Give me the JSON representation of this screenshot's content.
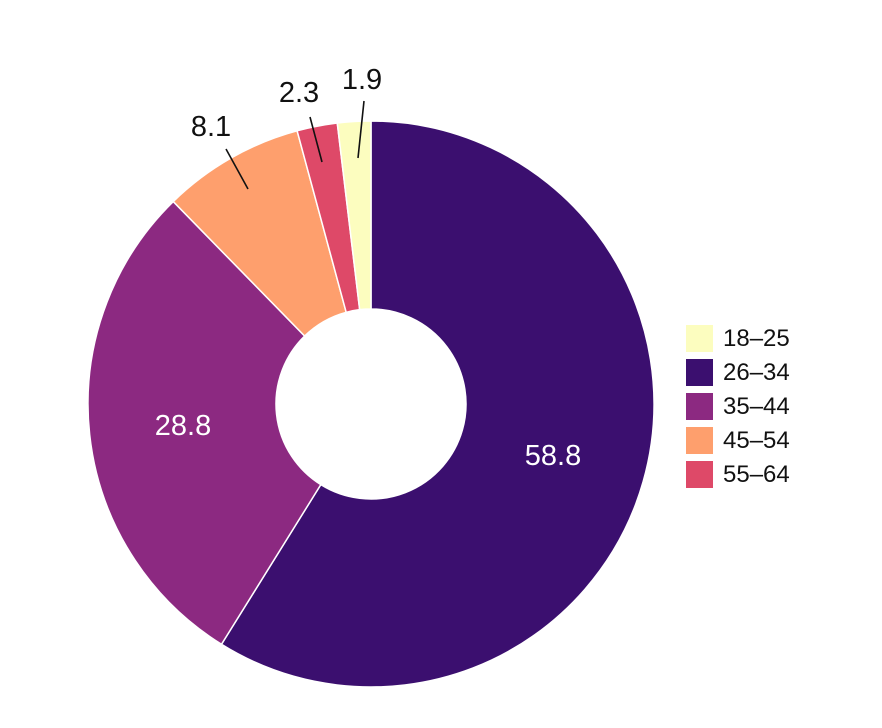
{
  "chart_data": {
    "type": "pie",
    "style": "donut",
    "categories": [
      "26–34",
      "35–44",
      "45–54",
      "55–64",
      "18–25"
    ],
    "values": [
      58.8,
      28.8,
      8.1,
      2.3,
      1.9
    ],
    "colors": [
      "#3b0f6f",
      "#8c2981",
      "#fe9f6d",
      "#de4968",
      "#fcfdbf"
    ],
    "data_labels": [
      "58.8",
      "28.8",
      "8.1",
      "2.3",
      "1.9"
    ],
    "label_placement": [
      "inside",
      "inside",
      "outside",
      "outside",
      "outside"
    ],
    "label_colors": [
      "#ffffff",
      "#ffffff",
      "#111111",
      "#111111",
      "#111111"
    ],
    "legend": {
      "position": "right",
      "entries": [
        {
          "label": "18–25",
          "color": "#fcfdbf"
        },
        {
          "label": "26–34",
          "color": "#3b0f6f"
        },
        {
          "label": "35–44",
          "color": "#8c2981"
        },
        {
          "label": "45–54",
          "color": "#fe9f6d"
        },
        {
          "label": "55–64",
          "color": "#de4968"
        }
      ]
    },
    "title": "",
    "start_angle": "12 o'clock",
    "direction": "clockwise"
  }
}
